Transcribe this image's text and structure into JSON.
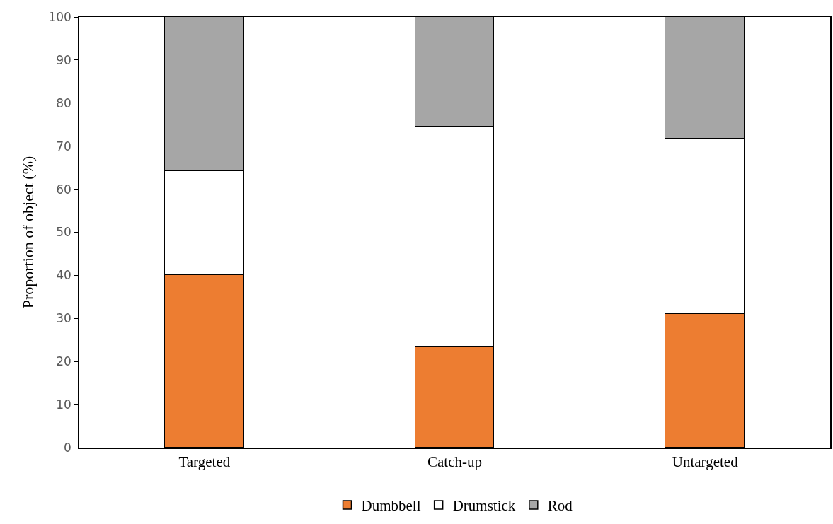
{
  "chart_data": {
    "type": "bar",
    "stacked": true,
    "ylabel": "Proportion of object (%)",
    "categories": [
      "Targeted",
      "Catch-up",
      "Untargeted"
    ],
    "series": [
      {
        "name": "Dumbbell",
        "color": "#ed7d31",
        "values": [
          40.0,
          23.5,
          31.0
        ]
      },
      {
        "name": "Drumstick",
        "color": "#ffffff",
        "values": [
          24.2,
          51.1,
          40.7
        ]
      },
      {
        "name": "Rod",
        "color": "#a6a6a6",
        "values": [
          35.8,
          25.4,
          28.3
        ]
      }
    ],
    "ylim": [
      0,
      100
    ],
    "yticks": [
      0,
      10,
      20,
      30,
      40,
      50,
      60,
      70,
      80,
      90,
      100
    ],
    "legend": "bottom"
  }
}
